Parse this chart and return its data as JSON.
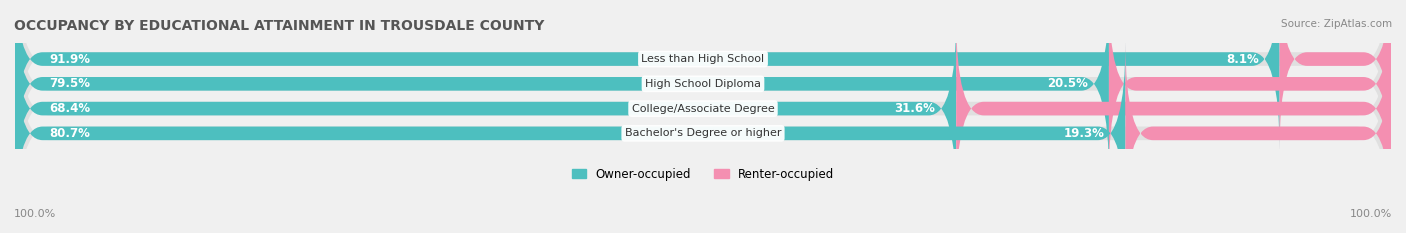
{
  "title": "OCCUPANCY BY EDUCATIONAL ATTAINMENT IN TROUSDALE COUNTY",
  "source": "Source: ZipAtlas.com",
  "categories": [
    "Less than High School",
    "High School Diploma",
    "College/Associate Degree",
    "Bachelor's Degree or higher"
  ],
  "owner_values": [
    91.9,
    79.5,
    68.4,
    80.7
  ],
  "renter_values": [
    8.1,
    20.5,
    31.6,
    19.3
  ],
  "owner_color": "#4DBFBF",
  "renter_color": "#F48FB1",
  "bg_color": "#F0F0F0",
  "bar_bg_color": "#E0E0E0",
  "owner_label": "Owner-occupied",
  "renter_label": "Renter-occupied",
  "title_fontsize": 10,
  "label_fontsize": 8.5,
  "bar_height": 0.55,
  "x_left_label": "100.0%",
  "x_right_label": "100.0%"
}
